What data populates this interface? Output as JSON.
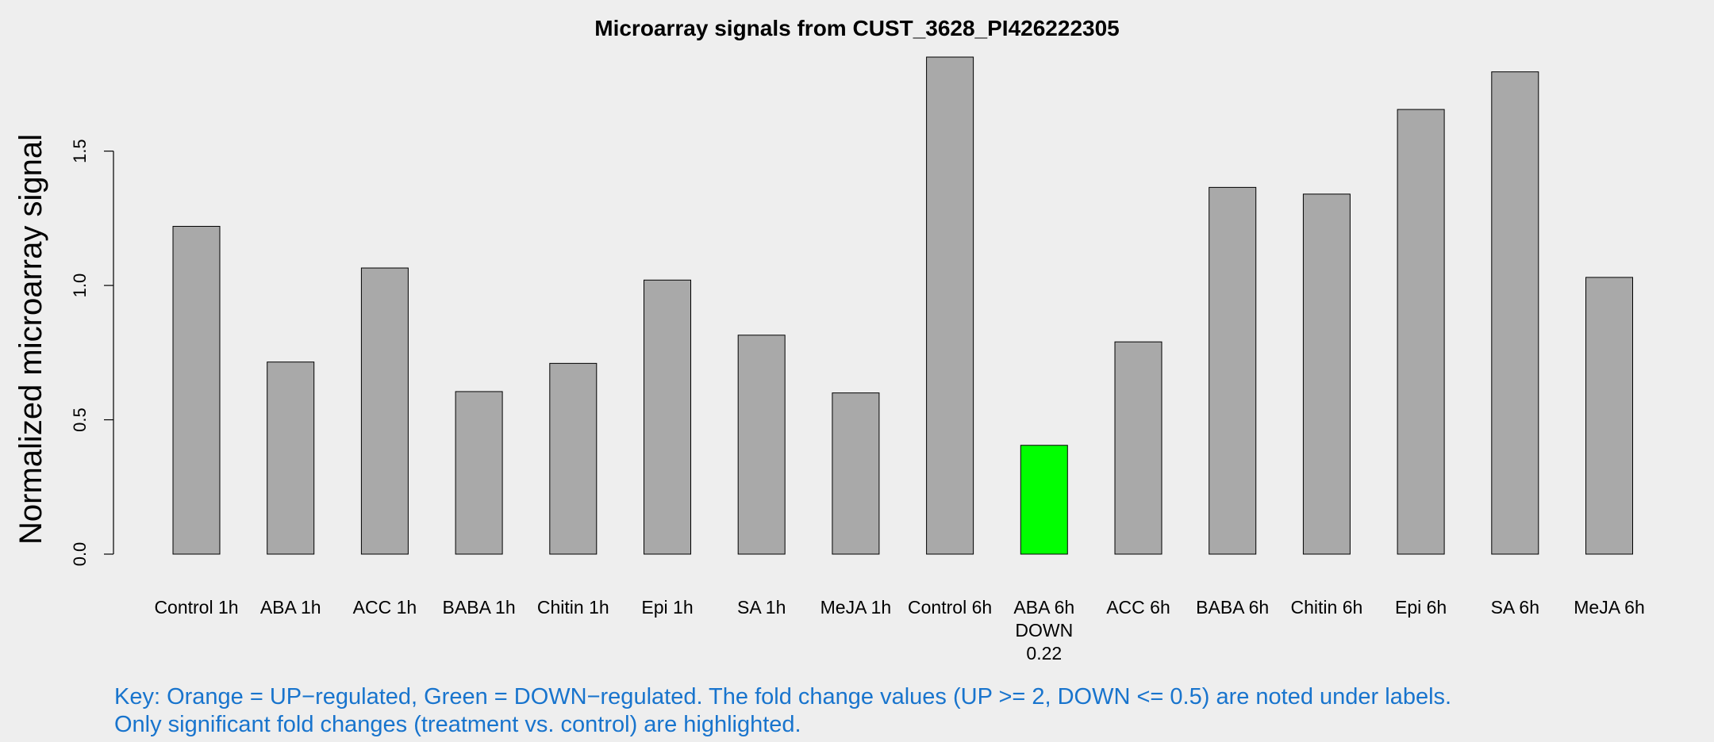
{
  "chart_data": {
    "type": "bar",
    "title": "Microarray signals from CUST_3628_PI426222305",
    "ylabel": "Normalized microarray signal",
    "xlabel": "",
    "ylim": [
      0,
      1.85
    ],
    "yticks": [
      "0.0",
      "0.5",
      "1.0",
      "1.5"
    ],
    "ytick_values": [
      0,
      0.5,
      1.0,
      1.5
    ],
    "categories": [
      "Control 1h",
      "ABA 1h",
      "ACC 1h",
      "BABA 1h",
      "Chitin 1h",
      "Epi 1h",
      "SA 1h",
      "MeJA 1h",
      "Control 6h",
      "ABA 6h",
      "ACC 6h",
      "BABA 6h",
      "Chitin 6h",
      "Epi 6h",
      "SA 6h",
      "MeJA 6h"
    ],
    "values": [
      1.22,
      0.715,
      1.065,
      0.605,
      0.71,
      1.02,
      0.815,
      0.6,
      1.85,
      0.405,
      0.79,
      1.365,
      1.34,
      1.655,
      1.795,
      1.03
    ],
    "bar_colors": [
      "#a9a9a9",
      "#a9a9a9",
      "#a9a9a9",
      "#a9a9a9",
      "#a9a9a9",
      "#a9a9a9",
      "#a9a9a9",
      "#a9a9a9",
      "#a9a9a9",
      "#00ff00",
      "#a9a9a9",
      "#a9a9a9",
      "#a9a9a9",
      "#a9a9a9",
      "#a9a9a9",
      "#a9a9a9"
    ],
    "annotations": [
      {
        "category": "ABA 6h",
        "lines": [
          "DOWN",
          "0.22"
        ]
      }
    ],
    "grid": false,
    "legend": "none"
  },
  "key": {
    "line1": "Key: Orange = UP−regulated, Green = DOWN−regulated. The fold change values (UP >= 2, DOWN <= 0.5) are noted under labels.",
    "line2": "Only significant fold changes (treatment vs. control) are highlighted."
  },
  "colors": {
    "up": "#ffa500",
    "down": "#00ff00",
    "neutral": "#a9a9a9",
    "key_text": "#1874cd",
    "background": "#eeeeee"
  }
}
